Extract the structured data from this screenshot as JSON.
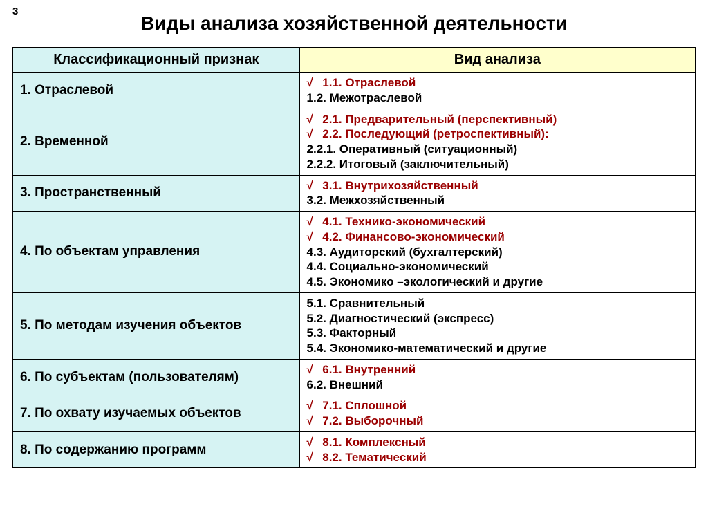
{
  "page_number": "3",
  "title": "Виды анализа хозяйственной деятельности",
  "table": {
    "header_left": "Классификационный признак",
    "header_right": "Вид анализа",
    "colors": {
      "header_left_bg": "#d6f3f3",
      "header_right_bg": "#ffffcc",
      "col_left_bg": "#d6f3f3",
      "col_right_bg": "#ffffff",
      "border": "#000000",
      "text_black": "#000000",
      "text_red": "#9a0000"
    },
    "fonts": {
      "title_size_pt": 28,
      "header_size_pt": 20,
      "left_col_size_pt": 19,
      "right_col_size_pt": 17
    },
    "rows": [
      {
        "left": "1. Отраслевой",
        "right": [
          {
            "check": true,
            "text": "1.1. Отраслевой",
            "color": "red"
          },
          {
            "check": false,
            "text": "1.2. Межотраслевой",
            "color": "black"
          }
        ]
      },
      {
        "left": "2. Временной",
        "right": [
          {
            "check": true,
            "text": "2.1. Предварительный (перспективный)",
            "color": "red"
          },
          {
            "check": true,
            "text": "2.2. Последующий (ретроспективный):",
            "color": "red"
          },
          {
            "check": false,
            "text": "2.2.1. Оперативный (ситуационный)",
            "color": "black"
          },
          {
            "check": false,
            "text": "2.2.2. Итоговый (заключительный)",
            "color": "black"
          }
        ]
      },
      {
        "left": "3. Пространственный",
        "right": [
          {
            "check": true,
            "text": "3.1. Внутрихозяйственный",
            "color": "red"
          },
          {
            "check": false,
            "text": "3.2. Межхозяйственный",
            "color": "black"
          }
        ]
      },
      {
        "left": "4. По объектам управления",
        "right": [
          {
            "check": true,
            "text": "4.1. Технико-экономический",
            "color": "red"
          },
          {
            "check": true,
            "text": "4.2. Финансово-экономический",
            "color": "red"
          },
          {
            "check": false,
            "text": "4.3. Аудиторский (бухгалтерский)",
            "color": "black"
          },
          {
            "check": false,
            "text": "4.4. Социально-экономический",
            "color": "black"
          },
          {
            "check": false,
            "text": "4.5. Экономико –экологический и другие",
            "color": "black"
          }
        ]
      },
      {
        "left": "5. По методам изучения объектов",
        "right": [
          {
            "check": false,
            "text": "5.1. Сравнительный",
            "color": "black"
          },
          {
            "check": false,
            "text": "5.2. Диагностический (экспресс)",
            "color": "black"
          },
          {
            "check": false,
            "text": "5.3. Факторный",
            "color": "black"
          },
          {
            "check": false,
            "text": "5.4. Экономико-математический и другие",
            "color": "black"
          }
        ]
      },
      {
        "left": "6. По субъектам (пользователям)",
        "right": [
          {
            "check": true,
            "text": "6.1. Внутренний",
            "color": "red"
          },
          {
            "check": false,
            "text": "6.2. Внешний",
            "color": "black"
          }
        ]
      },
      {
        "left": "7. По охвату изучаемых объектов",
        "right": [
          {
            "check": true,
            "text": "7.1. Сплошной",
            "color": "red"
          },
          {
            "check": true,
            "text": "7.2. Выборочный",
            "color": "red"
          }
        ]
      },
      {
        "left": "8. По содержанию программ",
        "right": [
          {
            "check": true,
            "text": "8.1. Комплексный",
            "color": "red"
          },
          {
            "check": true,
            "text": "8.2. Тематический",
            "color": "red"
          }
        ]
      }
    ]
  }
}
